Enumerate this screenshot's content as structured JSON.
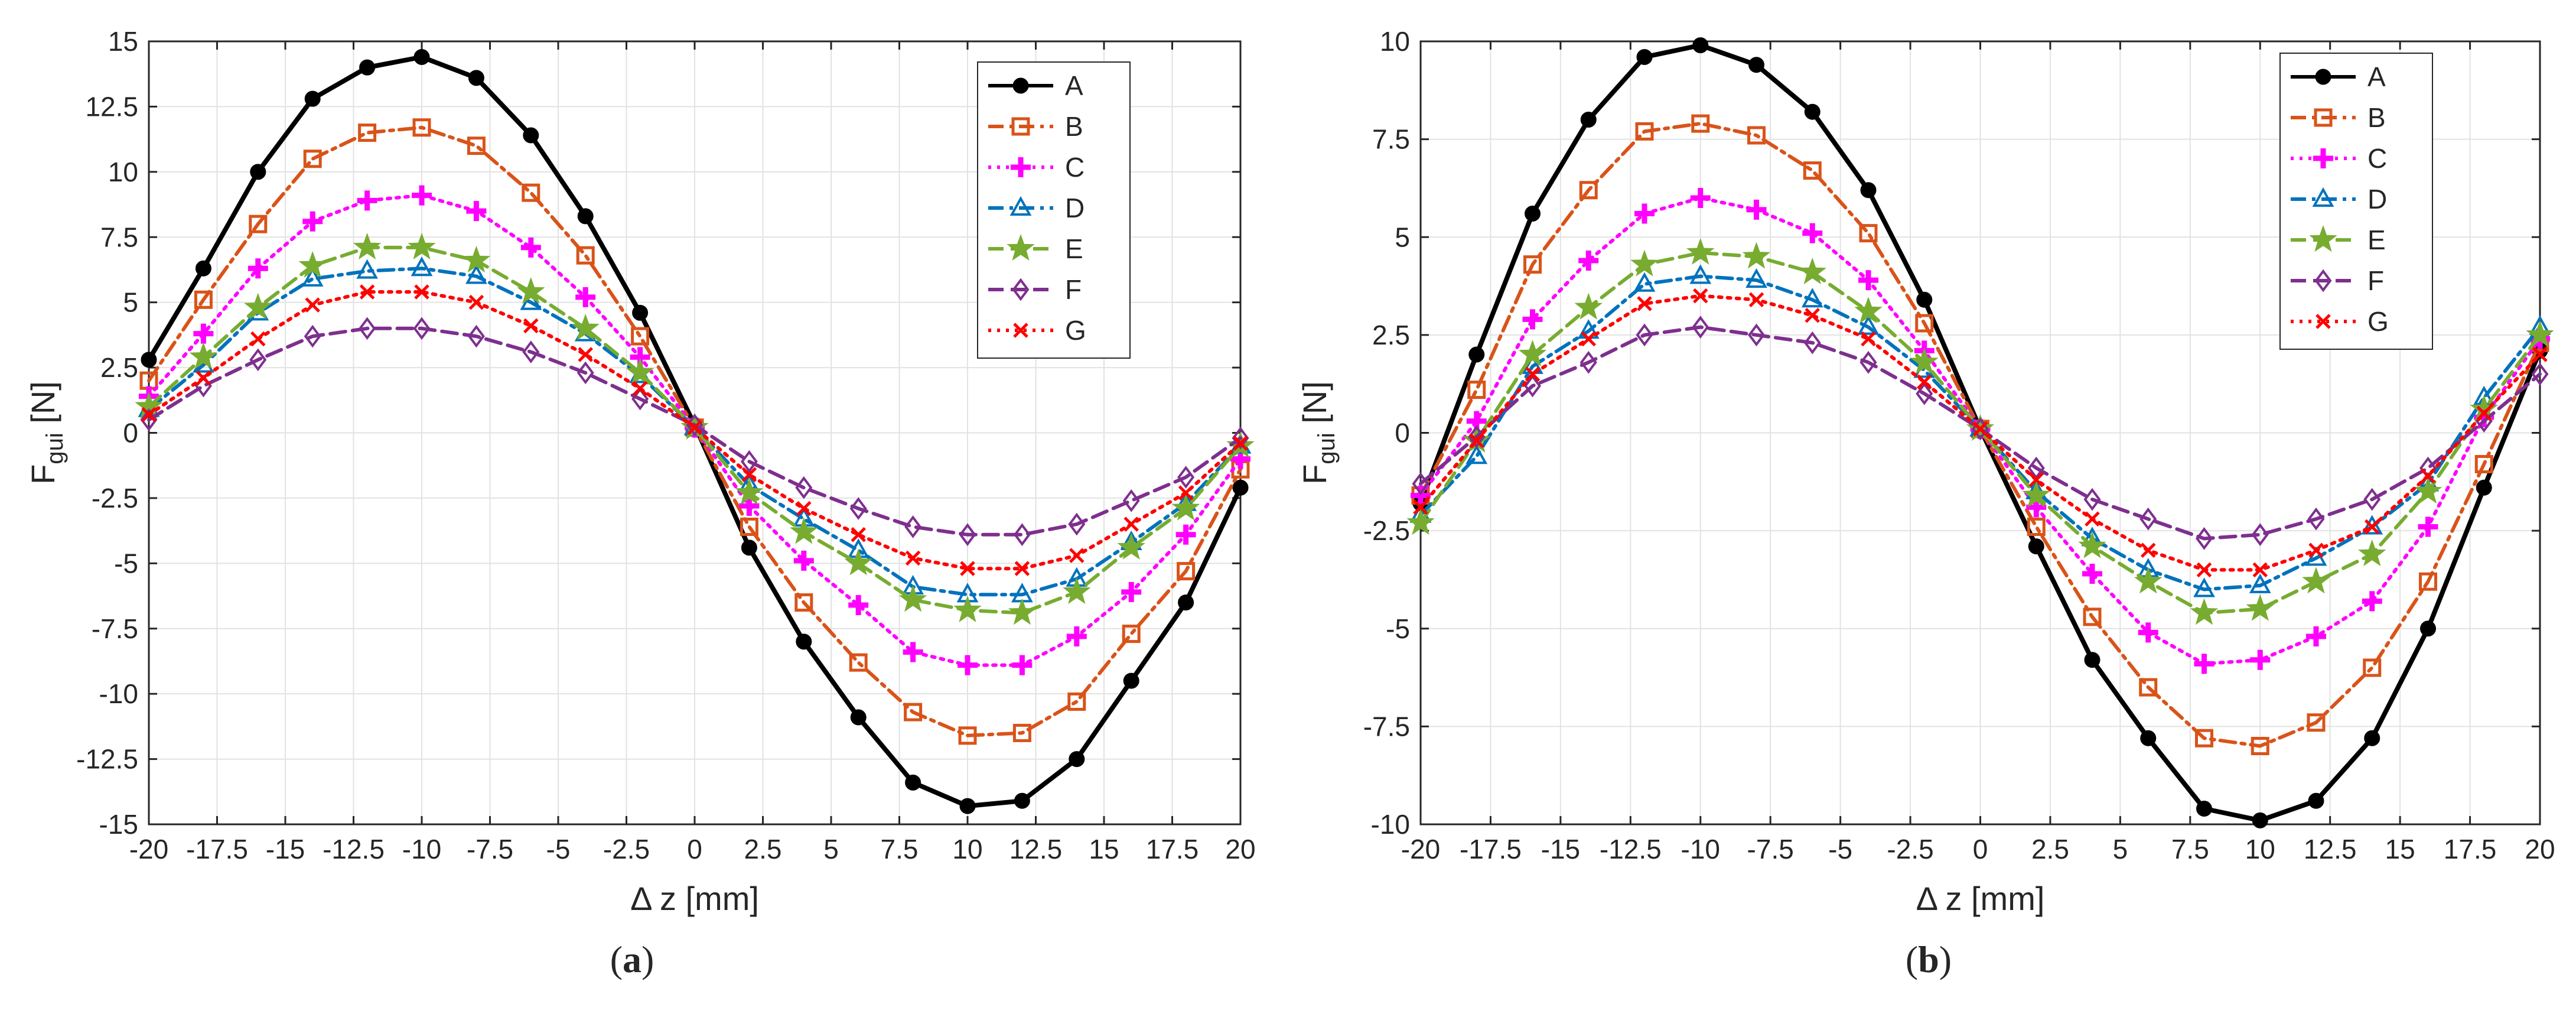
{
  "chart_data": [
    {
      "type": "line",
      "panel_label": "a",
      "xlabel": "Δ z [mm]",
      "ylabel": "F",
      "ylabel_sub": "gui",
      "ylabel_unit": " [N]",
      "xlim": [
        -20,
        20
      ],
      "ylim": [
        -15,
        15
      ],
      "xticks": [
        -20,
        -17.5,
        -15,
        -12.5,
        -10,
        -7.5,
        -5,
        -2.5,
        0,
        2.5,
        5,
        7.5,
        10,
        12.5,
        15,
        17.5,
        20
      ],
      "yticks": [
        -15,
        -12.5,
        -10,
        -7.5,
        -5,
        -2.5,
        0,
        2.5,
        5,
        7.5,
        10,
        12.5,
        15
      ],
      "grid": true,
      "legend": "top-right",
      "x": [
        -20,
        -18,
        -16,
        -14,
        -12,
        -10,
        -8,
        -6,
        -4,
        -2,
        0,
        2,
        4,
        6,
        8,
        10,
        12,
        14,
        16,
        18,
        20
      ],
      "series": [
        {
          "name": "A",
          "color": "#000000",
          "marker": "circle",
          "dash": "solid",
          "values": [
            2.8,
            6.3,
            10.0,
            12.8,
            14.0,
            14.4,
            13.6,
            11.4,
            8.3,
            4.6,
            0.3,
            -4.4,
            -8.0,
            -10.9,
            -13.4,
            -14.3,
            -14.1,
            -12.5,
            -9.5,
            -6.5,
            -2.1
          ]
        },
        {
          "name": "B",
          "color": "#d95319",
          "marker": "square",
          "dash": "dashdot",
          "values": [
            2.0,
            5.1,
            8.0,
            10.5,
            11.5,
            11.7,
            11.0,
            9.2,
            6.8,
            3.7,
            0.2,
            -3.6,
            -6.5,
            -8.8,
            -10.7,
            -11.6,
            -11.5,
            -10.3,
            -7.7,
            -5.3,
            -1.4
          ]
        },
        {
          "name": "C",
          "color": "#ff00ff",
          "marker": "plus",
          "dash": "dot",
          "values": [
            1.4,
            3.8,
            6.3,
            8.1,
            8.9,
            9.1,
            8.5,
            7.1,
            5.2,
            2.9,
            0.2,
            -2.8,
            -4.9,
            -6.6,
            -8.4,
            -8.9,
            -8.9,
            -7.8,
            -6.1,
            -3.9,
            -1.0
          ]
        },
        {
          "name": "D",
          "color": "#0072bd",
          "marker": "triangle",
          "dash": "dashdot",
          "values": [
            0.9,
            2.6,
            4.6,
            5.9,
            6.2,
            6.3,
            6.0,
            5.0,
            3.8,
            2.2,
            0.2,
            -2.0,
            -3.3,
            -4.5,
            -5.9,
            -6.2,
            -6.2,
            -5.6,
            -4.2,
            -2.7,
            -0.5
          ]
        },
        {
          "name": "E",
          "color": "#77ac30",
          "marker": "star",
          "dash": "dash",
          "values": [
            1.0,
            2.9,
            4.8,
            6.4,
            7.1,
            7.1,
            6.6,
            5.4,
            4.0,
            2.3,
            0.2,
            -2.3,
            -3.8,
            -5.0,
            -6.4,
            -6.8,
            -6.9,
            -6.1,
            -4.4,
            -2.9,
            -0.5
          ]
        },
        {
          "name": "F",
          "color": "#7e2f8e",
          "marker": "diamond",
          "dash": "dash",
          "values": [
            0.5,
            1.8,
            2.8,
            3.7,
            4.0,
            4.0,
            3.7,
            3.1,
            2.3,
            1.3,
            0.3,
            -1.1,
            -2.1,
            -2.9,
            -3.6,
            -3.9,
            -3.9,
            -3.5,
            -2.6,
            -1.7,
            -0.2
          ]
        },
        {
          "name": "G",
          "color": "#ff0000",
          "marker": "x",
          "dash": "dot",
          "values": [
            0.7,
            2.1,
            3.6,
            4.9,
            5.4,
            5.4,
            5.0,
            4.1,
            3.0,
            1.7,
            0.2,
            -1.6,
            -2.9,
            -3.9,
            -4.8,
            -5.2,
            -5.2,
            -4.7,
            -3.5,
            -2.3,
            -0.4
          ]
        }
      ]
    },
    {
      "type": "line",
      "panel_label": "b",
      "xlabel": "Δ z [mm]",
      "ylabel": "F",
      "ylabel_sub": "gui",
      "ylabel_unit": " [N]",
      "xlim": [
        -20,
        20
      ],
      "ylim": [
        -10,
        10
      ],
      "xticks": [
        -20,
        -17.5,
        -15,
        -12.5,
        -10,
        -7.5,
        -5,
        -2.5,
        0,
        2.5,
        5,
        7.5,
        10,
        12.5,
        15,
        17.5,
        20
      ],
      "yticks": [
        -10,
        -7.5,
        -5,
        -2.5,
        0,
        2.5,
        5,
        7.5,
        10
      ],
      "grid": true,
      "legend": "top-right",
      "x": [
        -20,
        -18,
        -16,
        -14,
        -12,
        -10,
        -8,
        -6,
        -4,
        -2,
        0,
        2,
        4,
        6,
        8,
        10,
        12,
        14,
        16,
        18,
        20
      ],
      "series": [
        {
          "name": "A",
          "color": "#000000",
          "marker": "circle",
          "dash": "solid",
          "values": [
            -1.8,
            2.0,
            5.6,
            8.0,
            9.6,
            9.9,
            9.4,
            8.2,
            6.2,
            3.4,
            0.1,
            -2.9,
            -5.8,
            -7.8,
            -9.6,
            -9.9,
            -9.4,
            -7.8,
            -5.0,
            -1.4,
            2.1
          ]
        },
        {
          "name": "B",
          "color": "#d95319",
          "marker": "square",
          "dash": "dashdot",
          "values": [
            -1.6,
            1.1,
            4.3,
            6.2,
            7.7,
            7.9,
            7.6,
            6.7,
            5.1,
            2.8,
            0.1,
            -2.4,
            -4.7,
            -6.5,
            -7.8,
            -8.0,
            -7.4,
            -6.0,
            -3.8,
            -0.8,
            2.3
          ]
        },
        {
          "name": "C",
          "color": "#ff00ff",
          "marker": "plus",
          "dash": "dot",
          "values": [
            -1.6,
            0.3,
            2.9,
            4.4,
            5.6,
            6.0,
            5.7,
            5.1,
            3.9,
            2.1,
            0.1,
            -1.9,
            -3.6,
            -5.1,
            -5.9,
            -5.8,
            -5.2,
            -4.3,
            -2.4,
            0.4,
            2.4
          ]
        },
        {
          "name": "D",
          "color": "#0072bd",
          "marker": "triangle",
          "dash": "dashdot",
          "values": [
            -2.1,
            -0.6,
            1.7,
            2.6,
            3.8,
            4.0,
            3.9,
            3.4,
            2.7,
            1.6,
            0.1,
            -1.5,
            -2.7,
            -3.5,
            -4.0,
            -3.9,
            -3.2,
            -2.4,
            -1.3,
            0.9,
            2.7
          ]
        },
        {
          "name": "E",
          "color": "#77ac30",
          "marker": "star",
          "dash": "dash",
          "values": [
            -2.3,
            -0.2,
            2.0,
            3.2,
            4.3,
            4.6,
            4.5,
            4.1,
            3.1,
            1.8,
            0.1,
            -1.6,
            -2.9,
            -3.8,
            -4.6,
            -4.5,
            -3.8,
            -3.1,
            -1.5,
            0.6,
            2.5
          ]
        },
        {
          "name": "F",
          "color": "#7e2f8e",
          "marker": "diamond",
          "dash": "dash",
          "values": [
            -1.3,
            -0.1,
            1.2,
            1.8,
            2.5,
            2.7,
            2.5,
            2.3,
            1.8,
            1.0,
            0.1,
            -0.9,
            -1.7,
            -2.2,
            -2.7,
            -2.6,
            -2.2,
            -1.7,
            -0.9,
            0.3,
            1.5
          ]
        },
        {
          "name": "G",
          "color": "#ff0000",
          "marker": "x",
          "dash": "dot",
          "values": [
            -1.9,
            -0.2,
            1.5,
            2.4,
            3.3,
            3.5,
            3.4,
            3.0,
            2.4,
            1.3,
            0.1,
            -1.2,
            -2.2,
            -3.0,
            -3.5,
            -3.5,
            -3.0,
            -2.4,
            -1.1,
            0.5,
            2.0
          ]
        }
      ]
    }
  ]
}
